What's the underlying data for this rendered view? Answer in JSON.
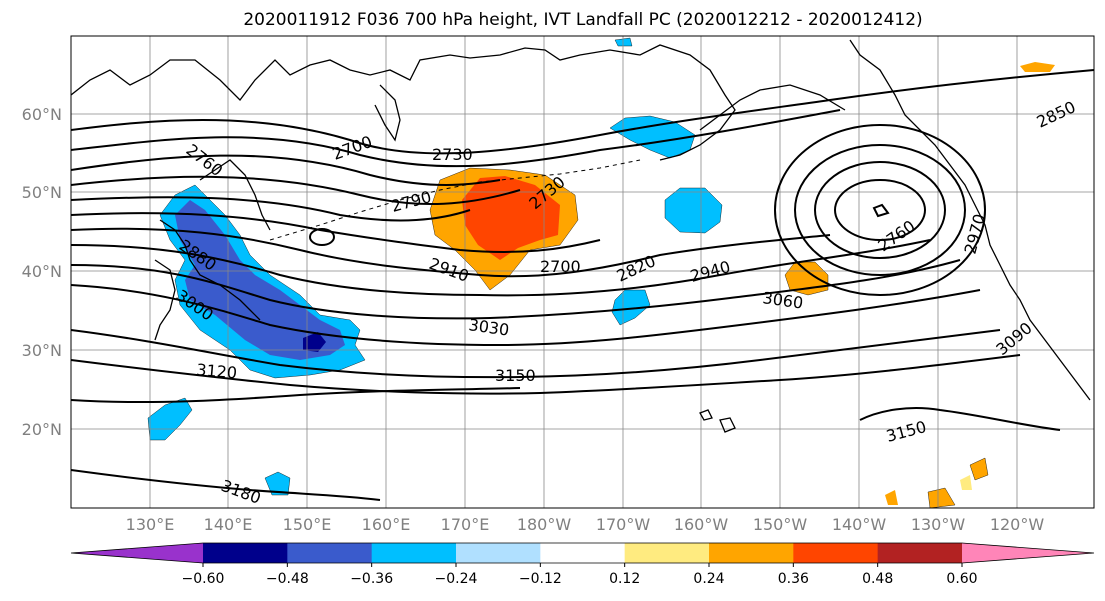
{
  "title": "2020011912 F036 700 hPa height, IVT Landfall PC (2020012212 - 2020012412)",
  "map": {
    "lat_labels": [
      "60°N",
      "50°N",
      "40°N",
      "30°N",
      "20°N"
    ],
    "lon_labels": [
      "130°E",
      "140°E",
      "150°E",
      "160°E",
      "170°E",
      "180°W",
      "170°W",
      "160°W",
      "150°W",
      "140°W",
      "130°W",
      "120°W"
    ],
    "contour_labels": [
      "2700",
      "2730",
      "2760",
      "2790",
      "2730",
      "2850",
      "2880",
      "3000",
      "2910",
      "2700",
      "2820",
      "2940",
      "2760",
      "2970",
      "3030",
      "3060",
      "3120",
      "3150",
      "3090",
      "3150",
      "3180"
    ]
  },
  "chart_data": {
    "type": "heatmap",
    "title": "2020011912 F036 700 hPa height, IVT Landfall PC (2020012212 - 2020012412)",
    "colorbar": {
      "ticks": [
        "−0.60",
        "−0.48",
        "−0.36",
        "−0.24",
        "−0.12",
        "0.12",
        "0.24",
        "0.36",
        "0.48",
        "0.60"
      ],
      "levels": [
        -0.6,
        -0.48,
        -0.36,
        -0.24,
        -0.12,
        0.12,
        0.24,
        0.36,
        0.48,
        0.6
      ],
      "colors": [
        "#9932cc",
        "#00008b",
        "#3a5bcc",
        "#00bfff",
        "#b0e0ff",
        "#ffffff",
        "#ffeb80",
        "#ffa500",
        "#ff4500",
        "#b22222",
        "#ff85b8"
      ],
      "extend": "both"
    },
    "contour_levels_hpa_height_m": [
      2700,
      2730,
      2760,
      2790,
      2820,
      2850,
      2880,
      2910,
      2940,
      2970,
      3000,
      3030,
      3060,
      3090,
      3120,
      3150,
      3180
    ],
    "map_extent": {
      "lon_min": 120,
      "lon_max": 250,
      "lat_min": 10,
      "lat_max": 70
    }
  }
}
